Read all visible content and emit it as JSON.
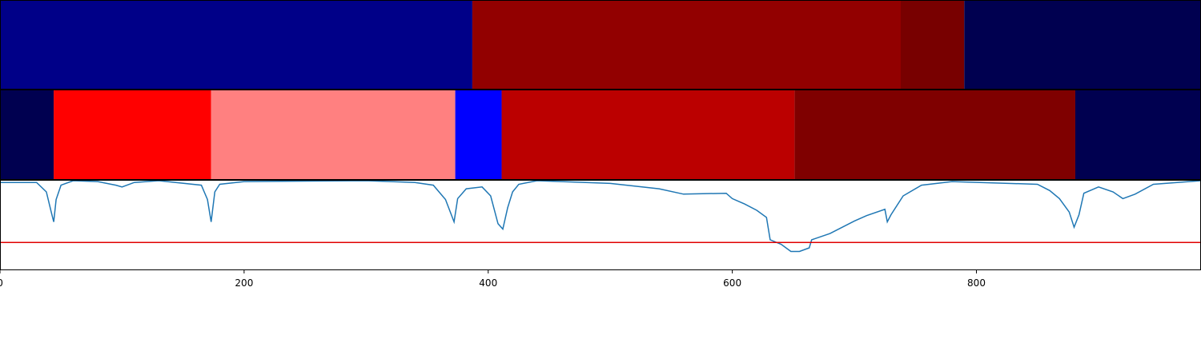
{
  "chart_data": [
    {
      "type": "segments",
      "xlim": [
        0,
        984
      ],
      "starts": [
        0,
        387,
        738,
        790
      ],
      "ends": [
        387,
        738,
        790,
        984
      ],
      "colors": [
        "#000088",
        "#920000",
        "#780000",
        "#000050"
      ]
    },
    {
      "type": "segments",
      "xlim": [
        0,
        984
      ],
      "starts": [
        0,
        44,
        173,
        373,
        411,
        651,
        881
      ],
      "ends": [
        44,
        173,
        373,
        411,
        651,
        881,
        984
      ],
      "colors": [
        "#000050",
        "#ff0000",
        "#ff8080",
        "#0000ff",
        "#bb0000",
        "#7f0000",
        "#000050"
      ]
    },
    {
      "type": "line",
      "xlim": [
        0,
        984
      ],
      "ylim": [
        0,
        1
      ],
      "xticks": [
        0,
        200,
        400,
        600,
        800
      ],
      "color": "#1f77b4",
      "threshold": 0.31,
      "threshold_color": "#e00000",
      "x": [
        0,
        30,
        38,
        42,
        44,
        46,
        50,
        60,
        80,
        95,
        100,
        110,
        130,
        165,
        170,
        173,
        176,
        180,
        200,
        300,
        340,
        355,
        365,
        372,
        375,
        382,
        395,
        402,
        408,
        412,
        416,
        420,
        425,
        440,
        500,
        540,
        560,
        595,
        600,
        610,
        620,
        628,
        631,
        640,
        648,
        655,
        663,
        665,
        680,
        700,
        710,
        725,
        727,
        730,
        740,
        755,
        780,
        850,
        860,
        868,
        876,
        880,
        884,
        888,
        900,
        912,
        920,
        930,
        945,
        984
      ],
      "values": [
        0.98,
        0.98,
        0.875,
        0.65,
        0.54,
        0.79,
        0.95,
        1.0,
        0.99,
        0.95,
        0.93,
        0.98,
        1.0,
        0.95,
        0.79,
        0.54,
        0.875,
        0.96,
        0.99,
        1.0,
        0.98,
        0.95,
        0.79,
        0.54,
        0.8,
        0.91,
        0.93,
        0.83,
        0.52,
        0.46,
        0.7,
        0.875,
        0.96,
        1.0,
        0.97,
        0.91,
        0.85,
        0.86,
        0.8,
        0.74,
        0.67,
        0.59,
        0.34,
        0.29,
        0.21,
        0.21,
        0.25,
        0.34,
        0.41,
        0.55,
        0.61,
        0.68,
        0.54,
        0.62,
        0.83,
        0.95,
        0.99,
        0.96,
        0.89,
        0.8,
        0.65,
        0.48,
        0.62,
        0.86,
        0.93,
        0.875,
        0.8,
        0.85,
        0.96,
        1.0
      ]
    }
  ]
}
